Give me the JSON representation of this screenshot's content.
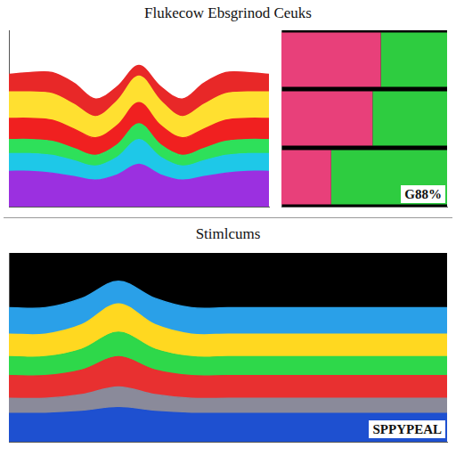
{
  "chart_data": [
    {
      "type": "line",
      "title": "Flukecow Ebsgrinod Ceuks",
      "stacked": true,
      "grid": false,
      "tick_labels": false,
      "categories": [
        null,
        null,
        null,
        null,
        null,
        null,
        null,
        null,
        null,
        null,
        null,
        null,
        null
      ],
      "ylim": [
        0,
        100
      ],
      "series": [
        {
          "color": "#9b30e0",
          "values": [
            20,
            20,
            19,
            17,
            15,
            18,
            24,
            18,
            15,
            17,
            19,
            20,
            20
          ]
        },
        {
          "color": "#1ec8e8",
          "values": [
            10,
            10,
            10,
            9,
            8,
            10,
            14,
            10,
            8,
            9,
            10,
            10,
            10
          ]
        },
        {
          "color": "#2ee05a",
          "values": [
            8,
            8,
            8,
            7,
            6,
            7,
            9,
            7,
            6,
            7,
            8,
            8,
            8
          ]
        },
        {
          "color": "#f02020",
          "values": [
            12,
            12,
            12,
            11,
            10,
            11,
            12,
            11,
            10,
            11,
            12,
            12,
            12
          ]
        },
        {
          "color": "#ffe030",
          "values": [
            15,
            15,
            15,
            14,
            12,
            14,
            15,
            14,
            12,
            14,
            15,
            15,
            15
          ]
        },
        {
          "color": "#e82828",
          "values": [
            10,
            11,
            12,
            12,
            10,
            8,
            6,
            8,
            10,
            12,
            12,
            11,
            10
          ]
        }
      ]
    },
    {
      "type": "bar",
      "orientation": "horizontal",
      "stacked": true,
      "grid": false,
      "tick_labels": false,
      "annotation": "G88%",
      "categories": [
        null,
        null,
        null
      ],
      "xlim": [
        0,
        100
      ],
      "series": [
        {
          "color": "#e8407a",
          "values": [
            60,
            55,
            30
          ]
        },
        {
          "color": "#2ecc40",
          "values": [
            40,
            45,
            70
          ]
        }
      ]
    },
    {
      "type": "line",
      "title": "Stimlcums",
      "stacked": true,
      "grid": false,
      "tick_labels": false,
      "annotation": "SPPYPEAL",
      "categories": [
        null,
        null,
        null,
        null,
        null,
        null,
        null,
        null,
        null,
        null,
        null,
        null,
        null
      ],
      "ylim": [
        0,
        100
      ],
      "series": [
        {
          "color": "#1e50d0",
          "values": [
            15,
            15,
            16,
            18,
            16,
            15,
            15,
            15,
            15,
            15,
            15,
            15,
            15
          ]
        },
        {
          "color": "#8a8a9a",
          "values": [
            8,
            8,
            9,
            11,
            9,
            8,
            8,
            8,
            8,
            8,
            8,
            8,
            8
          ]
        },
        {
          "color": "#e83030",
          "values": [
            12,
            12,
            13,
            16,
            13,
            12,
            12,
            12,
            12,
            12,
            12,
            12,
            12
          ]
        },
        {
          "color": "#2ed84a",
          "values": [
            10,
            10,
            11,
            13,
            11,
            10,
            10,
            10,
            10,
            10,
            10,
            10,
            10
          ]
        },
        {
          "color": "#ffd820",
          "values": [
            12,
            12,
            13,
            15,
            13,
            12,
            12,
            12,
            12,
            12,
            12,
            12,
            12
          ]
        },
        {
          "color": "#2aa0e8",
          "values": [
            14,
            14,
            14,
            12,
            14,
            14,
            14,
            14,
            14,
            14,
            14,
            14,
            14
          ]
        }
      ]
    }
  ]
}
